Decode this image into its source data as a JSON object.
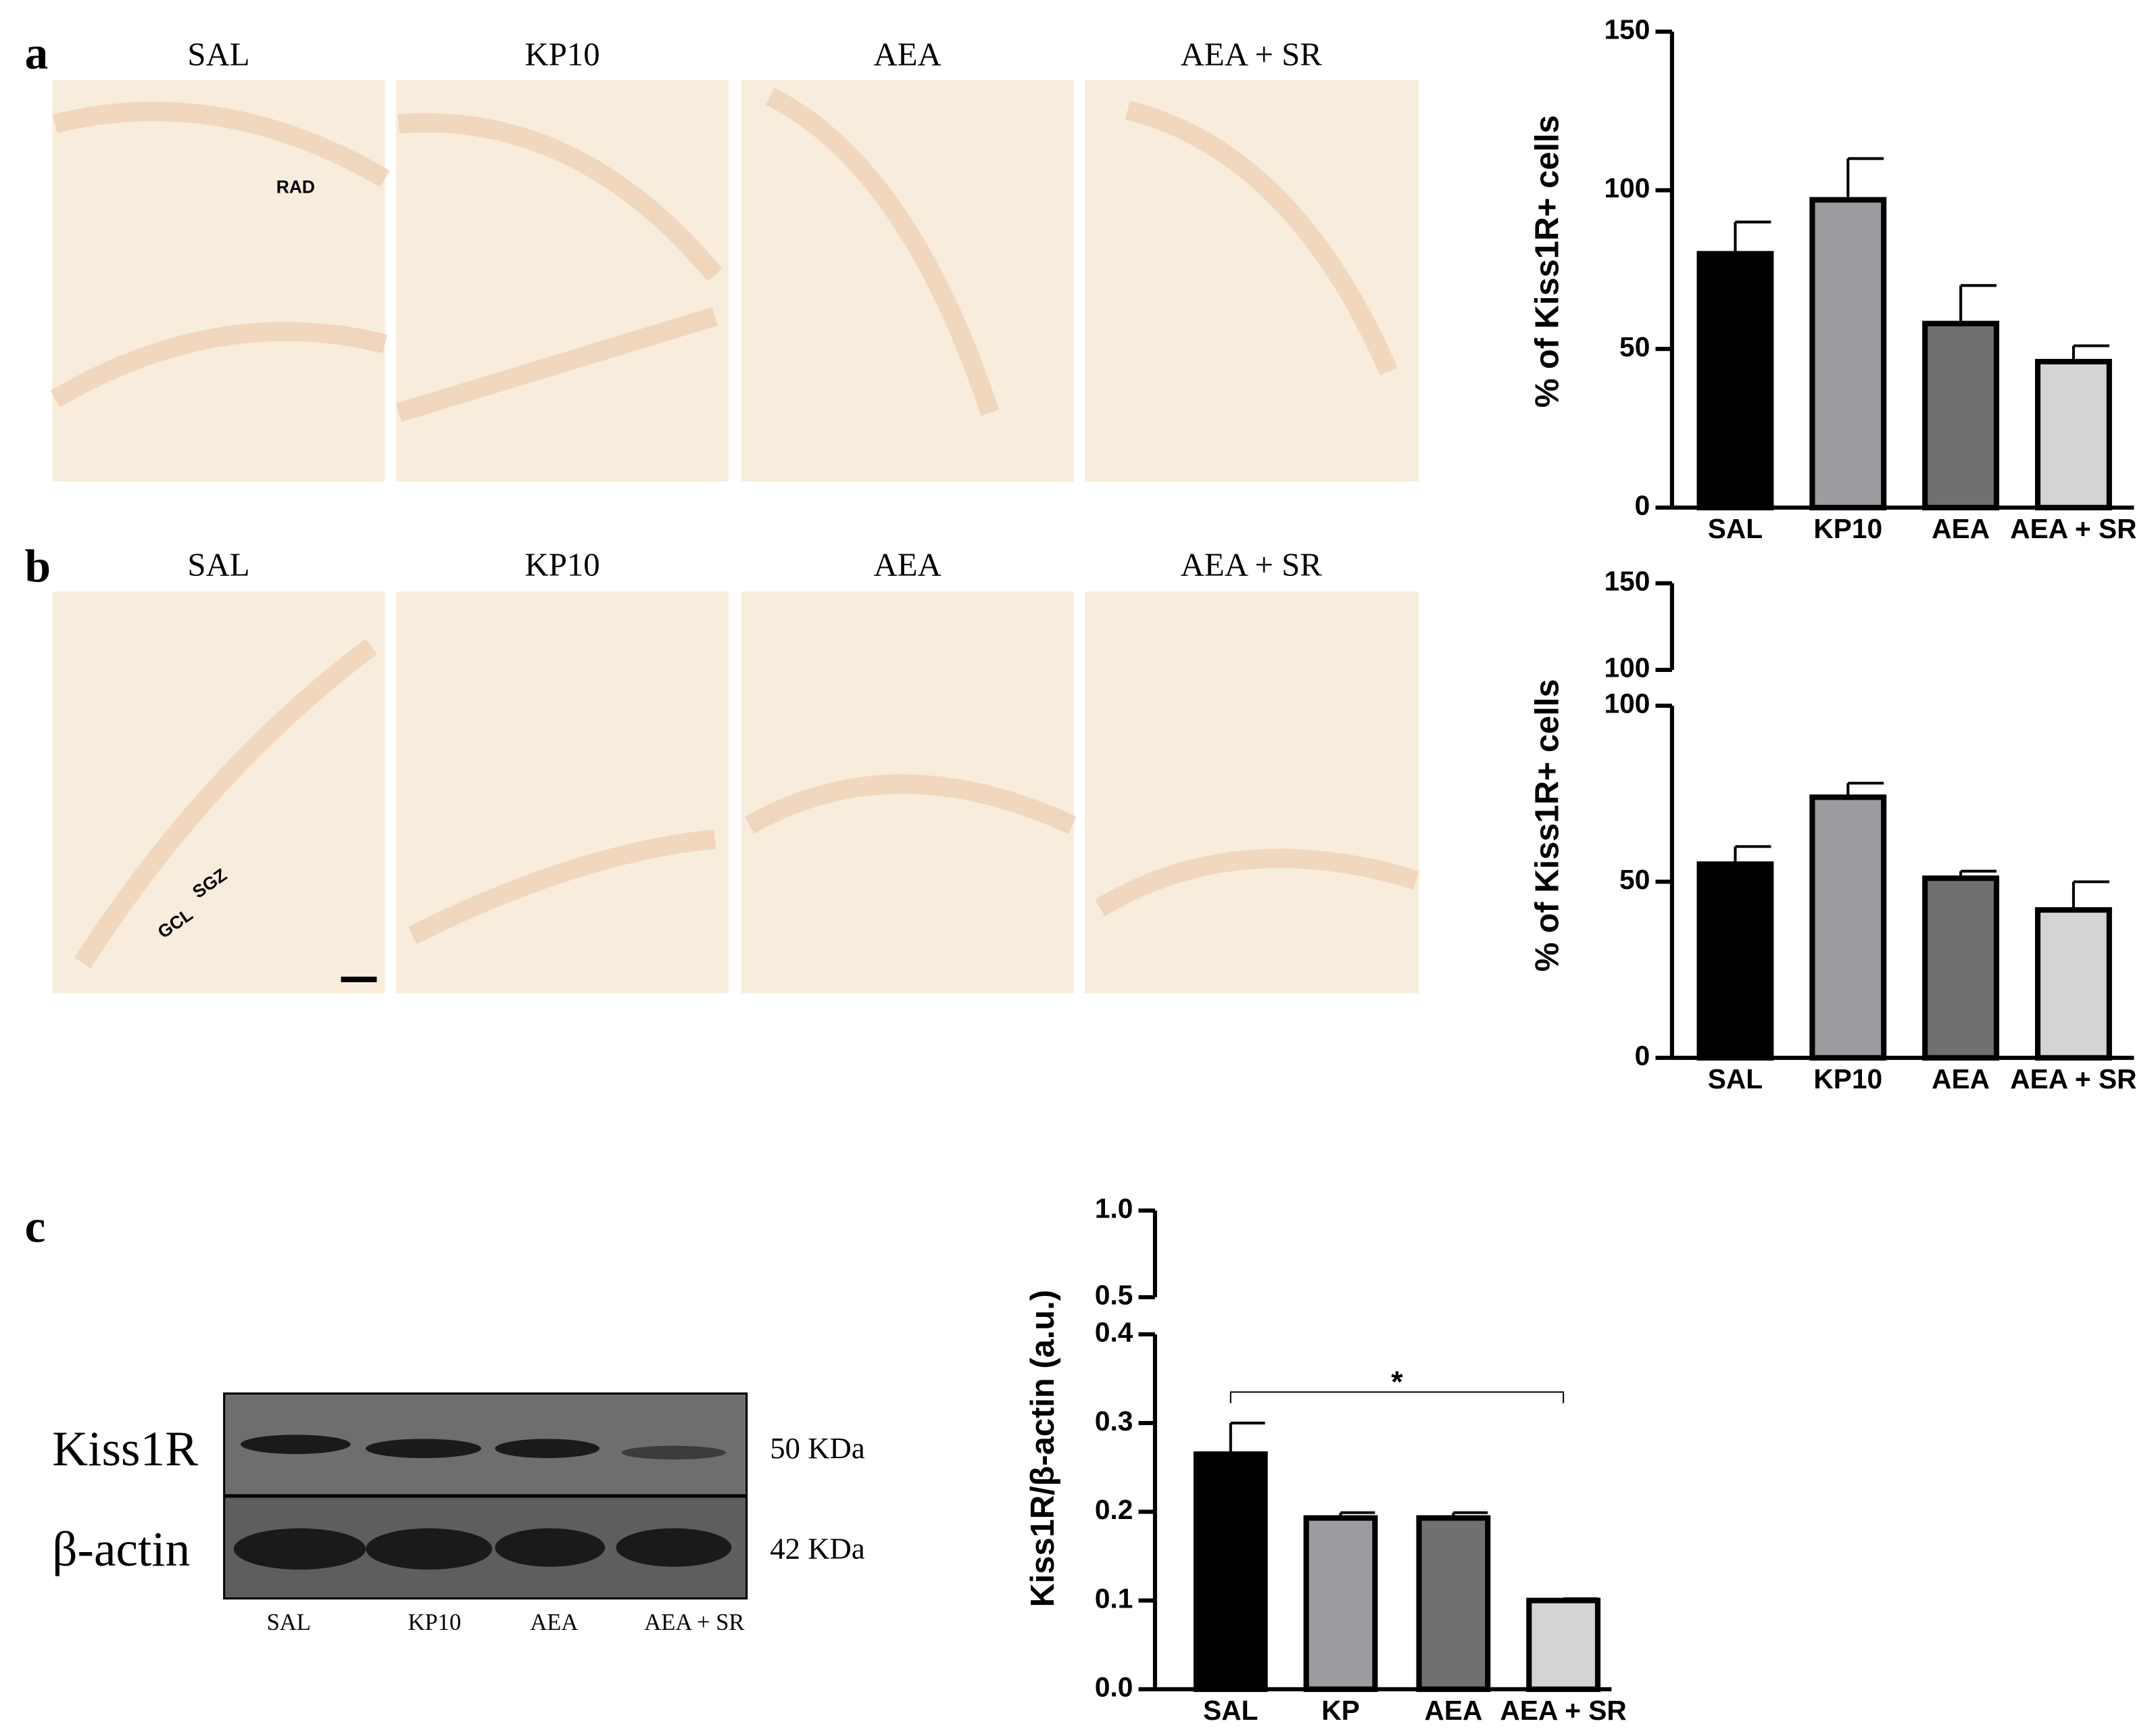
{
  "panels": [
    "a",
    "b",
    "c"
  ],
  "micrograph_rows": [
    {
      "labels": [
        "SAL",
        "KP10",
        "AEA",
        "AEA + SR"
      ],
      "annotations": [
        "RAD"
      ]
    },
    {
      "labels": [
        "SAL",
        "KP10",
        "AEA",
        "AEA + SR"
      ],
      "annotations": [
        "SGZ",
        "GCL"
      ]
    }
  ],
  "western_blot": {
    "bands": [
      {
        "name": "Kiss1R",
        "size": "50 KDa"
      },
      {
        "name": "β-actin",
        "size": "42 KDa"
      }
    ],
    "lanes": [
      "SAL",
      "KP10",
      "AEA",
      "AEA + SR"
    ]
  },
  "chart_data": [
    {
      "type": "bar",
      "y_label": "% of Kiss1R+ cells",
      "categories": [
        "SAL",
        "KP10",
        "AEA",
        "AEA + SR"
      ],
      "values": [
        80,
        97,
        58,
        46
      ],
      "errors": [
        10,
        13,
        12,
        5
      ],
      "colors": [
        "#000000",
        "#9b9ba0",
        "#707070",
        "#d4d4d4"
      ],
      "ylim": [
        0,
        150
      ],
      "yticks": [
        0,
        50,
        100,
        150
      ]
    },
    {
      "type": "bar",
      "y_label": "% of Kiss1R+ cells",
      "categories": [
        "SAL",
        "KP10",
        "AEA",
        "AEA + SR"
      ],
      "values": [
        55,
        74,
        51,
        42
      ],
      "errors": [
        5,
        4,
        2,
        8
      ],
      "colors": [
        "#000000",
        "#9b9ba0",
        "#707070",
        "#d4d4d4"
      ],
      "ylim": [
        0,
        100
      ],
      "yticks": [
        0,
        50,
        100
      ],
      "ylim_upper": [
        100,
        150
      ],
      "yticks_upper": [
        100,
        150
      ]
    },
    {
      "type": "bar",
      "y_label": "Kiss1R/β-actin (a.u.)",
      "categories": [
        "SAL",
        "KP",
        "AEA",
        "AEA + SR"
      ],
      "values": [
        0.265,
        0.193,
        0.193,
        0.1
      ],
      "errors": [
        0.035,
        0.006,
        0.006,
        0.002
      ],
      "colors": [
        "#000000",
        "#9b9ba0",
        "#707070",
        "#d4d4d4"
      ],
      "ylim": [
        0,
        0.4
      ],
      "yticks": [
        {
          "value": 0,
          "label": "0.0"
        },
        0.1,
        0.2,
        0.3,
        0.4
      ],
      "ylim_upper": [
        0.5,
        1
      ],
      "yticks_upper": [
        0.5,
        {
          "value": 1,
          "label": "1.0"
        }
      ],
      "significance": {
        "label": "*",
        "between": [
          "SAL",
          "AEA + SR"
        ]
      }
    }
  ]
}
